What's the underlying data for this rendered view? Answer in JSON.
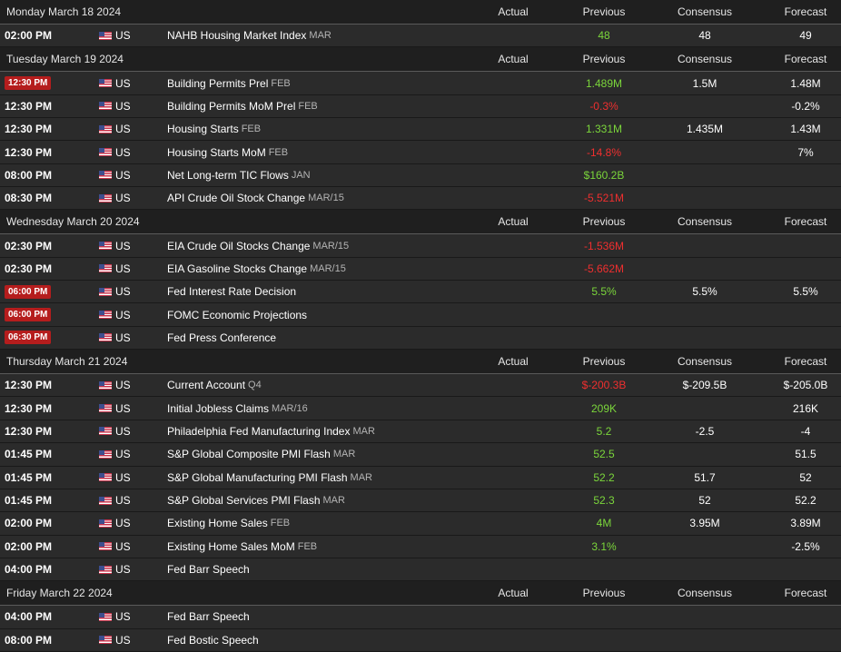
{
  "headers": {
    "actual": "Actual",
    "previous": "Previous",
    "consensus": "Consensus",
    "forecast": "Forecast"
  },
  "colors": {
    "positive": "#7bd63b",
    "negative": "#ef2f2f",
    "badge": "#b51d1d"
  },
  "days": [
    {
      "date": "Monday March 18 2024",
      "events": [
        {
          "time": "02:00 PM",
          "badge": false,
          "country": "US",
          "event": "NAHB Housing Market Index",
          "period": "MAR",
          "actual": "",
          "previous": "48",
          "prev_trend": "up",
          "consensus": "48",
          "forecast": "49"
        }
      ]
    },
    {
      "date": "Tuesday March 19 2024",
      "events": [
        {
          "time": "12:30 PM",
          "badge": true,
          "country": "US",
          "event": "Building Permits Prel",
          "period": "FEB",
          "actual": "",
          "previous": "1.489M",
          "prev_trend": "up",
          "consensus": "1.5M",
          "forecast": "1.48M"
        },
        {
          "time": "12:30 PM",
          "badge": false,
          "country": "US",
          "event": "Building Permits MoM Prel",
          "period": "FEB",
          "actual": "",
          "previous": "-0.3%",
          "prev_trend": "down",
          "consensus": "",
          "forecast": "-0.2%"
        },
        {
          "time": "12:30 PM",
          "badge": false,
          "country": "US",
          "event": "Housing Starts",
          "period": "FEB",
          "actual": "",
          "previous": "1.331M",
          "prev_trend": "up",
          "consensus": "1.435M",
          "forecast": "1.43M"
        },
        {
          "time": "12:30 PM",
          "badge": false,
          "country": "US",
          "event": "Housing Starts MoM",
          "period": "FEB",
          "actual": "",
          "previous": "-14.8%",
          "prev_trend": "down",
          "consensus": "",
          "forecast": "7%"
        },
        {
          "time": "08:00 PM",
          "badge": false,
          "country": "US",
          "event": "Net Long-term TIC Flows",
          "period": "JAN",
          "actual": "",
          "previous": "$160.2B",
          "prev_trend": "up",
          "consensus": "",
          "forecast": ""
        },
        {
          "time": "08:30 PM",
          "badge": false,
          "country": "US",
          "event": "API Crude Oil Stock Change",
          "period": "MAR/15",
          "actual": "",
          "previous": "-5.521M",
          "prev_trend": "down",
          "consensus": "",
          "forecast": ""
        }
      ]
    },
    {
      "date": "Wednesday March 20 2024",
      "events": [
        {
          "time": "02:30 PM",
          "badge": false,
          "country": "US",
          "event": "EIA Crude Oil Stocks Change",
          "period": "MAR/15",
          "actual": "",
          "previous": "-1.536M",
          "prev_trend": "down",
          "consensus": "",
          "forecast": ""
        },
        {
          "time": "02:30 PM",
          "badge": false,
          "country": "US",
          "event": "EIA Gasoline Stocks Change",
          "period": "MAR/15",
          "actual": "",
          "previous": "-5.662M",
          "prev_trend": "down",
          "consensus": "",
          "forecast": ""
        },
        {
          "time": "06:00 PM",
          "badge": true,
          "country": "US",
          "event": "Fed Interest Rate Decision",
          "period": "",
          "actual": "",
          "previous": "5.5%",
          "prev_trend": "up",
          "consensus": "5.5%",
          "forecast": "5.5%"
        },
        {
          "time": "06:00 PM",
          "badge": true,
          "country": "US",
          "event": "FOMC Economic Projections",
          "period": "",
          "actual": "",
          "previous": "",
          "prev_trend": "",
          "consensus": "",
          "forecast": ""
        },
        {
          "time": "06:30 PM",
          "badge": true,
          "country": "US",
          "event": "Fed Press Conference",
          "period": "",
          "actual": "",
          "previous": "",
          "prev_trend": "",
          "consensus": "",
          "forecast": ""
        }
      ]
    },
    {
      "date": "Thursday March 21 2024",
      "events": [
        {
          "time": "12:30 PM",
          "badge": false,
          "country": "US",
          "event": "Current Account",
          "period": "Q4",
          "actual": "",
          "previous": "$-200.3B",
          "prev_trend": "down",
          "consensus": "$-209.5B",
          "forecast": "$-205.0B"
        },
        {
          "time": "12:30 PM",
          "badge": false,
          "country": "US",
          "event": "Initial Jobless Claims",
          "period": "MAR/16",
          "actual": "",
          "previous": "209K",
          "prev_trend": "up",
          "consensus": "",
          "forecast": "216K"
        },
        {
          "time": "12:30 PM",
          "badge": false,
          "country": "US",
          "event": "Philadelphia Fed Manufacturing Index",
          "period": "MAR",
          "actual": "",
          "previous": "5.2",
          "prev_trend": "up",
          "consensus": "-2.5",
          "forecast": "-4"
        },
        {
          "time": "01:45 PM",
          "badge": false,
          "country": "US",
          "event": "S&P Global Composite PMI Flash",
          "period": "MAR",
          "actual": "",
          "previous": "52.5",
          "prev_trend": "up",
          "consensus": "",
          "forecast": "51.5"
        },
        {
          "time": "01:45 PM",
          "badge": false,
          "country": "US",
          "event": "S&P Global Manufacturing PMI Flash",
          "period": "MAR",
          "actual": "",
          "previous": "52.2",
          "prev_trend": "up",
          "consensus": "51.7",
          "forecast": "52"
        },
        {
          "time": "01:45 PM",
          "badge": false,
          "country": "US",
          "event": "S&P Global Services PMI Flash",
          "period": "MAR",
          "actual": "",
          "previous": "52.3",
          "prev_trend": "up",
          "consensus": "52",
          "forecast": "52.2"
        },
        {
          "time": "02:00 PM",
          "badge": false,
          "country": "US",
          "event": "Existing Home Sales",
          "period": "FEB",
          "actual": "",
          "previous": "4M",
          "prev_trend": "up",
          "consensus": "3.95M",
          "forecast": "3.89M"
        },
        {
          "time": "02:00 PM",
          "badge": false,
          "country": "US",
          "event": "Existing Home Sales MoM",
          "period": "FEB",
          "actual": "",
          "previous": "3.1%",
          "prev_trend": "up",
          "consensus": "",
          "forecast": "-2.5%"
        },
        {
          "time": "04:00 PM",
          "badge": false,
          "country": "US",
          "event": "Fed Barr Speech",
          "period": "",
          "actual": "",
          "previous": "",
          "prev_trend": "",
          "consensus": "",
          "forecast": ""
        }
      ]
    },
    {
      "date": "Friday March 22 2024",
      "events": [
        {
          "time": "04:00 PM",
          "badge": false,
          "country": "US",
          "event": "Fed Barr Speech",
          "period": "",
          "actual": "",
          "previous": "",
          "prev_trend": "",
          "consensus": "",
          "forecast": ""
        },
        {
          "time": "08:00 PM",
          "badge": false,
          "country": "US",
          "event": "Fed Bostic Speech",
          "period": "",
          "actual": "",
          "previous": "",
          "prev_trend": "",
          "consensus": "",
          "forecast": ""
        }
      ]
    }
  ]
}
